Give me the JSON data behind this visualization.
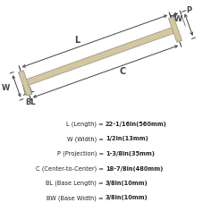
{
  "bg_color": "#ffffff",
  "beam_color": "#d4c89a",
  "beam_edge_color": "#999999",
  "line_color": "#444444",
  "text_color": "#222222",
  "title_lines": [
    "L (Length) = 22-1/16in(560mm)",
    "W (Width) = 1/2in(13mm)",
    "P (Projection) = 1-3/8in(35mm)",
    "C (Center-to-Center) = 18-7/8in(480mm)",
    "BL (Base Length) = 3/8in(10mm)",
    "BW (Base Width) = 3/8in(10mm)"
  ],
  "bold_parts": [
    "22-1/16in(560mm)",
    "1/2in(13mm)",
    "1-3/8in(35mm)",
    "18-7/8in(480mm)",
    "3/8in(10mm)",
    "3/8in(10mm)"
  ],
  "prefixes": [
    "L (Length) = ",
    "W (Width) = ",
    "P (Projection) = ",
    "C (Center-to-Center) = ",
    "BL (Base Length) = ",
    "BW (Base Width) = "
  ]
}
